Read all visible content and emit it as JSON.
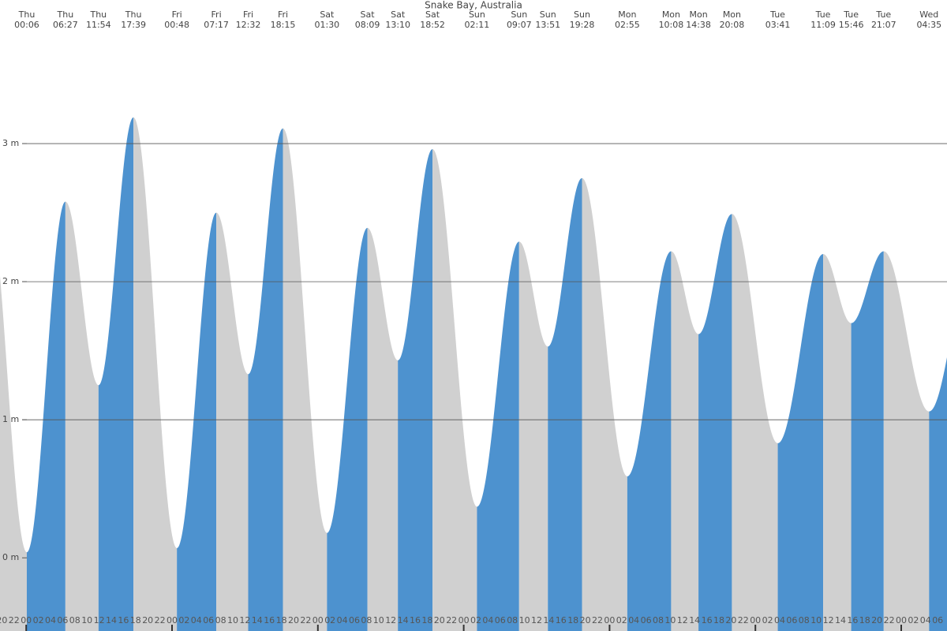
{
  "chart_data": {
    "type": "tide",
    "title": "Snake Bay, Australia",
    "extremes": [
      {
        "day": "Thu",
        "time": "00:06",
        "height": 0.04
      },
      {
        "day": "Thu",
        "time": "06:27",
        "height": 2.58
      },
      {
        "day": "Thu",
        "time": "11:54",
        "height": 1.25
      },
      {
        "day": "Thu",
        "time": "17:39",
        "height": 3.19
      },
      {
        "day": "Fri",
        "time": "00:48",
        "height": 0.07
      },
      {
        "day": "Fri",
        "time": "07:17",
        "height": 2.5
      },
      {
        "day": "Fri",
        "time": "12:32",
        "height": 1.33
      },
      {
        "day": "Fri",
        "time": "18:15",
        "height": 3.11
      },
      {
        "day": "Sat",
        "time": "01:30",
        "height": 0.18
      },
      {
        "day": "Sat",
        "time": "08:09",
        "height": 2.39
      },
      {
        "day": "Sat",
        "time": "13:10",
        "height": 1.43
      },
      {
        "day": "Sat",
        "time": "18:52",
        "height": 2.96
      },
      {
        "day": "Sun",
        "time": "02:11",
        "height": 0.37
      },
      {
        "day": "Sun",
        "time": "09:07",
        "height": 2.29
      },
      {
        "day": "Sun",
        "time": "13:51",
        "height": 1.53
      },
      {
        "day": "Sun",
        "time": "19:28",
        "height": 2.75
      },
      {
        "day": "Mon",
        "time": "02:55",
        "height": 0.59
      },
      {
        "day": "Mon",
        "time": "10:08",
        "height": 2.22
      },
      {
        "day": "Mon",
        "time": "14:38",
        "height": 1.62
      },
      {
        "day": "Mon",
        "time": "20:08",
        "height": 2.49
      },
      {
        "day": "Tue",
        "time": "03:41",
        "height": 0.83
      },
      {
        "day": "Tue",
        "time": "11:09",
        "height": 2.2
      },
      {
        "day": "Tue",
        "time": "15:46",
        "height": 1.7
      },
      {
        "day": "Tue",
        "time": "21:07",
        "height": 2.22
      },
      {
        "day": "Wed",
        "time": "04:35",
        "height": 1.06
      }
    ],
    "hour_labels": [
      "20",
      "22",
      "00",
      "02",
      "04",
      "06",
      "08",
      "10",
      "12",
      "14",
      "16",
      "18",
      "20",
      "22",
      "00",
      "02",
      "04",
      "06",
      "08",
      "10",
      "12",
      "14",
      "16",
      "18",
      "20",
      "22",
      "00",
      "02",
      "04",
      "06",
      "08",
      "10",
      "12",
      "14",
      "16",
      "18",
      "20",
      "22",
      "00",
      "02",
      "04",
      "06",
      "08",
      "10",
      "12",
      "14",
      "16",
      "18",
      "20",
      "22",
      "00",
      "02",
      "04",
      "06",
      "08",
      "10",
      "12",
      "14",
      "16",
      "18",
      "20",
      "22",
      "00",
      "02",
      "04",
      "06",
      "08",
      "10",
      "12",
      "14",
      "16",
      "18",
      "20",
      "22",
      "00",
      "02",
      "04",
      "06"
    ],
    "ylim": [
      -0.53,
      4.04
    ],
    "yticks": [
      {
        "value": 0,
        "label": "0 m"
      },
      {
        "value": 1,
        "label": "1 m"
      },
      {
        "value": 2,
        "label": "2 m"
      },
      {
        "value": 3,
        "label": "3 m"
      }
    ],
    "rising_color": "#4d92cf",
    "falling_color": "#d0d0d0",
    "grid": true
  }
}
